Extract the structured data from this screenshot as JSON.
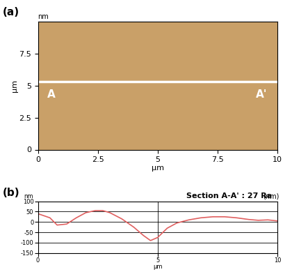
{
  "chart_data": [
    {
      "type": "surface",
      "title": "(a)",
      "xlabel": "μm",
      "ylabel": "μm",
      "xlim": [
        0,
        10
      ],
      "ylim": [
        0,
        10
      ],
      "xticks": [
        0,
        2.5,
        5,
        7.5,
        10
      ],
      "yticks": [
        0,
        2.5,
        5,
        7.5
      ],
      "z_label": "nm",
      "color": "#c9a068",
      "section": {
        "y": 5.3,
        "x": [
          0,
          10
        ],
        "color": "#ffffff"
      },
      "annotations": [
        {
          "text": "A",
          "x": 0.4,
          "y": 4.7
        },
        {
          "text": "A'",
          "x": 9.1,
          "y": 4.7
        }
      ]
    },
    {
      "type": "line",
      "panel": "(b)",
      "title": "Section A-A' : 27 Ra",
      "unit": "(nm)",
      "xlabel": "μm",
      "ylabel": "nm",
      "x": [
        0,
        0.5,
        0.8,
        1.2,
        1.6,
        2.0,
        2.4,
        2.7,
        3.0,
        3.5,
        4.0,
        4.4,
        4.7,
        5.0,
        5.4,
        5.8,
        6.3,
        6.8,
        7.3,
        7.8,
        8.3,
        8.8,
        9.2,
        9.6,
        10
      ],
      "values": [
        40,
        20,
        -15,
        -10,
        20,
        45,
        55,
        55,
        45,
        15,
        -25,
        -65,
        -90,
        -75,
        -30,
        -5,
        10,
        20,
        25,
        25,
        20,
        12,
        8,
        10,
        5
      ],
      "color": "#e06060",
      "xlim": [
        0,
        10
      ],
      "ylim": [
        -150,
        100
      ],
      "xticks": [
        0,
        5,
        10
      ],
      "yticks": [
        -150,
        -100,
        -50,
        0,
        50,
        100
      ],
      "grid": true
    }
  ]
}
